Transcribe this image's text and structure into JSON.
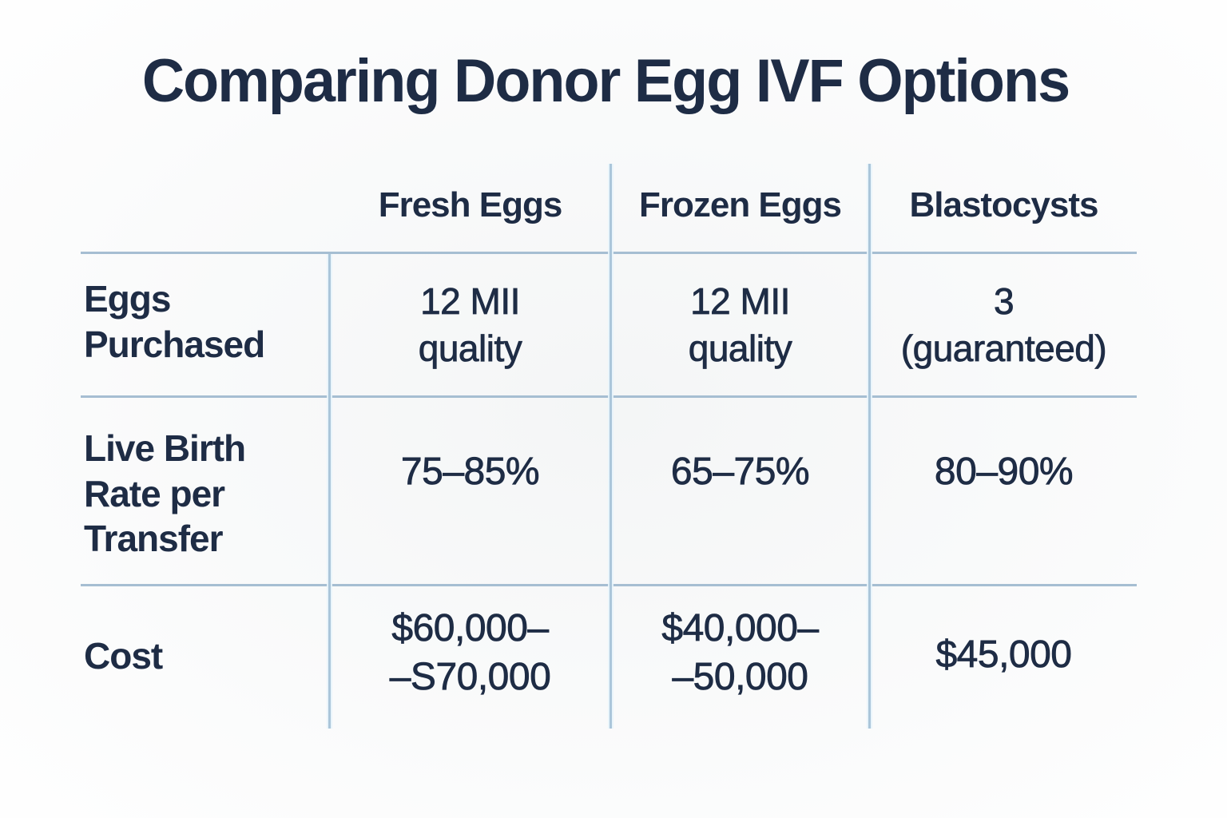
{
  "colors": {
    "background": "#f7f8f8",
    "text": "#1e2c45",
    "grid_horizontal": "#a6bed2",
    "grid_vertical": "#abc6da"
  },
  "title": "Comparing Donor Egg IVF Options",
  "table": {
    "column_headers": {
      "fresh": "Fresh Eggs",
      "frozen": "Frozen Eggs",
      "blastocysts": "Blastocysts"
    },
    "row_labels": {
      "eggs_purchased": "Eggs\nPurchased",
      "live_birth_rate": "Live Birth\nRate per\nTransfer",
      "cost": "Cost"
    },
    "cells": {
      "eggs_purchased": {
        "fresh": "12 MII\nquality",
        "frozen": "12 MII\nquality",
        "blastocysts": "3\n(guaranteed)"
      },
      "live_birth_rate": {
        "fresh": "75–85%",
        "frozen": "65–75%",
        "blastocysts": "80–90%"
      },
      "cost": {
        "fresh": "$60,000–\n–S70,000",
        "frozen": "$40,000–\n–50,000",
        "blastocysts": "$45,000"
      }
    }
  },
  "chart_data": {
    "type": "table",
    "title": "Comparing Donor Egg IVF Options",
    "columns": [
      "",
      "Fresh Eggs",
      "Frozen Eggs",
      "Blastocysts"
    ],
    "rows": [
      [
        "Eggs Purchased",
        "12 MII quality",
        "12 MII quality",
        "3 (guaranteed)"
      ],
      [
        "Live Birth Rate per Transfer",
        "75–85%",
        "65–75%",
        "80–90%"
      ],
      [
        "Cost",
        "$60,000– –S70,000",
        "$40,000– –50,000",
        "$45,000"
      ]
    ]
  }
}
